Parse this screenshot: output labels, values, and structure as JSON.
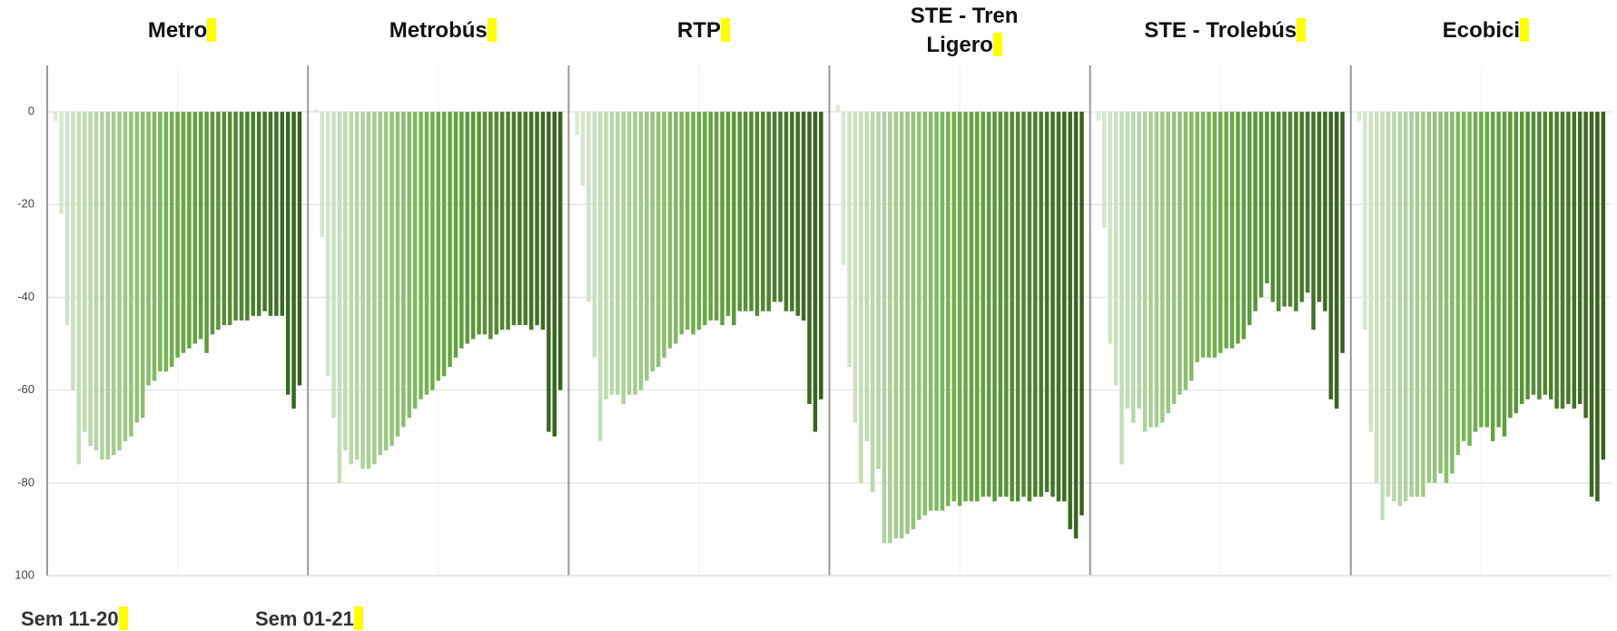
{
  "chart_data": {
    "type": "bar",
    "ylim": [
      -100,
      10
    ],
    "yticks": [
      0,
      -20,
      -40,
      -60,
      -80,
      {
        "value": -100,
        "label": "100"
      }
    ],
    "grid": true,
    "color_gradient": [
      "#dbe9d2",
      "#6aad45",
      "#36611d"
    ],
    "x_labels": [
      "Sem 11-20",
      "Sem 01-21"
    ],
    "panels": [
      {
        "title": "Metro",
        "values": [
          -2,
          -22,
          -46,
          -60,
          -76,
          -69,
          -72,
          -73,
          -75,
          -75,
          -74,
          -73,
          -71,
          -70,
          -67,
          -66,
          -59,
          -58,
          -56,
          -56,
          -55,
          -53,
          -52,
          -51,
          -50,
          -49,
          -52,
          -48,
          -47,
          -46,
          -46,
          -45,
          -45,
          -45,
          -44,
          -44,
          -43,
          -44,
          -44,
          -44,
          -61,
          -64,
          -59
        ]
      },
      {
        "title": "Metrobús",
        "values": [
          0.5,
          -27,
          -57,
          -66,
          -80,
          -73,
          -76,
          -75,
          -77,
          -77,
          -76,
          -74,
          -73,
          -72,
          -70,
          -68,
          -66,
          -64,
          -62,
          -61,
          -60,
          -58,
          -57,
          -55,
          -53,
          -51,
          -50,
          -49,
          -48,
          -48,
          -49,
          -48,
          -47,
          -47,
          -46,
          -46,
          -46,
          -47,
          -46,
          -47,
          -69,
          -70,
          -60
        ]
      },
      {
        "title": "RTP",
        "values": [
          -5,
          -16,
          -41,
          -53,
          -71,
          -62,
          -61,
          -61,
          -63,
          -61,
          -61,
          -60,
          -58,
          -56,
          -55,
          -53,
          -51,
          -50,
          -48,
          -47,
          -48,
          -47,
          -46,
          -45,
          -45,
          -46,
          -44,
          -46,
          -43,
          -43,
          -43,
          -44,
          -43,
          -43,
          -41,
          -41,
          -43,
          -43,
          -44,
          -45,
          -63,
          -69,
          -62
        ]
      },
      {
        "title": "STE - Tren Ligero",
        "values": [
          1.5,
          -33,
          -55,
          -67,
          -80,
          -71,
          -82,
          -77,
          -93,
          -93,
          -92,
          -92,
          -91,
          -90,
          -88,
          -87,
          -86,
          -86,
          -86,
          -85,
          -84,
          -85,
          -84,
          -84,
          -84,
          -83,
          -83,
          -84,
          -83,
          -83,
          -84,
          -84,
          -83,
          -84,
          -83,
          -83,
          -82,
          -83,
          -84,
          -84,
          -90,
          -92,
          -87
        ]
      },
      {
        "title": "STE - Trolebús",
        "values": [
          -2,
          -25,
          -50,
          -59,
          -76,
          -64,
          -67,
          -64,
          -69,
          -68,
          -68,
          -67,
          -65,
          -63,
          -61,
          -60,
          -58,
          -54,
          -53,
          -53,
          -53,
          -52,
          -51,
          -51,
          -50,
          -49,
          -46,
          -43,
          -40,
          -37,
          -41,
          -43,
          -42,
          -42,
          -43,
          -41,
          -39,
          -47,
          -41,
          -43,
          -62,
          -64,
          -52
        ]
      },
      {
        "title": "Ecobici",
        "values": [
          -2,
          -47,
          -69,
          -80,
          -88,
          -83,
          -84,
          -85,
          -84,
          -83,
          -83,
          -83,
          -80,
          -80,
          -78,
          -80,
          -78,
          -74,
          -71,
          -72,
          -69,
          -68,
          -68,
          -71,
          -68,
          -70,
          -66,
          -65,
          -63,
          -62,
          -61,
          -62,
          -61,
          -62,
          -64,
          -64,
          -63,
          -64,
          -63,
          -66,
          -83,
          -84,
          -75
        ]
      }
    ]
  }
}
